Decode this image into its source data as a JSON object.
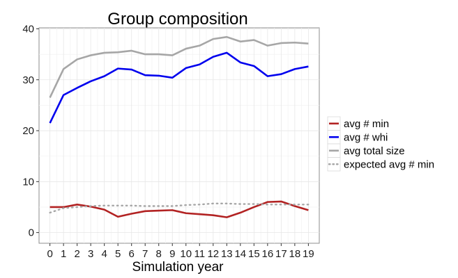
{
  "chart_data": {
    "type": "line",
    "title": "Group composition",
    "xlabel": "Simulation year",
    "ylabel": "",
    "x": [
      0,
      1,
      2,
      3,
      4,
      5,
      6,
      7,
      8,
      9,
      10,
      11,
      12,
      13,
      14,
      15,
      16,
      17,
      18,
      19
    ],
    "xlim": [
      0,
      19
    ],
    "ylim": [
      0,
      40
    ],
    "yticks": [
      0,
      10,
      20,
      30,
      40
    ],
    "grid": true,
    "legend_position": "right",
    "series": [
      {
        "name": "avg # min",
        "color": "#b22222",
        "style": "solid",
        "values": [
          5.0,
          5.0,
          5.5,
          5.1,
          4.5,
          3.1,
          3.7,
          4.2,
          4.3,
          4.4,
          3.8,
          3.6,
          3.4,
          3.0,
          3.9,
          5.0,
          6.0,
          6.1,
          5.2,
          4.4
        ]
      },
      {
        "name": "avg # whi",
        "color": "#0000ee",
        "style": "solid",
        "values": [
          21.5,
          27.0,
          28.4,
          29.7,
          30.7,
          32.2,
          32.0,
          30.9,
          30.8,
          30.4,
          32.3,
          33.0,
          34.5,
          35.3,
          33.4,
          32.7,
          30.7,
          31.1,
          32.1,
          32.6
        ]
      },
      {
        "name": "avg total size",
        "color": "#a6a6a6",
        "style": "solid",
        "values": [
          26.5,
          32.1,
          34.0,
          34.8,
          35.3,
          35.4,
          35.7,
          35.0,
          35.0,
          34.8,
          36.1,
          36.7,
          38.0,
          38.4,
          37.5,
          37.8,
          36.7,
          37.2,
          37.3,
          37.1
        ]
      },
      {
        "name": "expected avg # min",
        "color": "#a6a6a6",
        "style": "dotted",
        "values": [
          3.9,
          4.8,
          5.0,
          5.2,
          5.3,
          5.3,
          5.3,
          5.2,
          5.2,
          5.2,
          5.4,
          5.5,
          5.7,
          5.7,
          5.6,
          5.6,
          5.5,
          5.5,
          5.5,
          5.5
        ]
      }
    ]
  }
}
